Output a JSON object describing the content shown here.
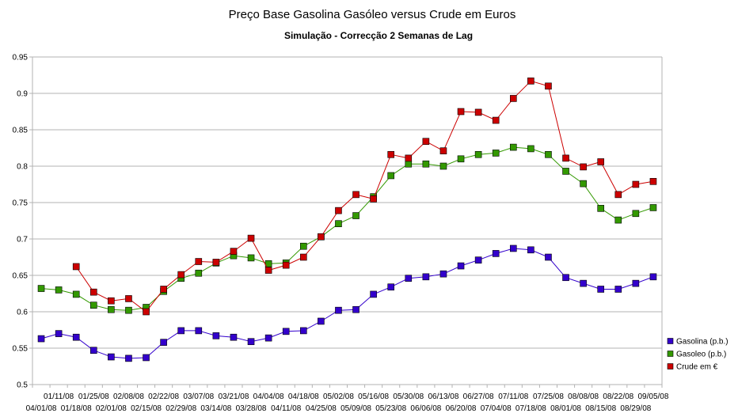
{
  "chart_data": {
    "type": "line",
    "title": "Preço Base Gasolina Gasóleo versus Crude em Euros",
    "subtitle": "Simulação - Correcção 2 Semanas de Lag",
    "xlabel": "",
    "ylabel": "",
    "ylim": [
      0.5,
      0.95
    ],
    "yticks": [
      "0.5",
      "0.55",
      "0.6",
      "0.65",
      "0.7",
      "0.75",
      "0.8",
      "0.85",
      "0.9",
      "0.95"
    ],
    "grid": true,
    "legend_position": "right",
    "categories": [
      "04/01/08",
      "01/11/08",
      "01/18/08",
      "01/25/08",
      "02/01/08",
      "02/08/08",
      "02/15/08",
      "02/22/08",
      "02/29/08",
      "03/07/08",
      "03/14/08",
      "03/21/08",
      "03/28/08",
      "04/04/08",
      "04/11/08",
      "04/18/08",
      "04/25/08",
      "05/02/08",
      "05/09/08",
      "05/16/08",
      "05/23/08",
      "05/30/08",
      "06/06/08",
      "06/13/08",
      "06/20/08",
      "06/27/08",
      "07/04/08",
      "07/11/08",
      "07/18/08",
      "07/25/08",
      "08/01/08",
      "08/08/08",
      "08/15/08",
      "08/22/08",
      "08/29/08",
      "09/05/08"
    ],
    "series": [
      {
        "name": "Gasolina (p.b.)",
        "color": "#3300cc",
        "values": [
          0.563,
          0.57,
          0.565,
          0.547,
          0.538,
          0.536,
          0.537,
          0.558,
          0.574,
          0.574,
          0.567,
          0.565,
          0.559,
          0.564,
          0.573,
          0.574,
          0.587,
          0.602,
          0.603,
          0.624,
          0.634,
          0.646,
          0.648,
          0.652,
          0.663,
          0.671,
          0.68,
          0.687,
          0.685,
          0.675,
          0.647,
          0.639,
          0.631,
          0.631,
          0.639,
          0.648
        ]
      },
      {
        "name": "Gasoleo (p.b.)",
        "color": "#339900",
        "values": [
          0.632,
          0.63,
          0.624,
          0.609,
          0.603,
          0.602,
          0.606,
          0.628,
          0.646,
          0.653,
          0.667,
          0.677,
          0.674,
          0.666,
          0.667,
          0.69,
          0.703,
          0.721,
          0.732,
          0.758,
          0.787,
          0.803,
          0.803,
          0.8,
          0.81,
          0.816,
          0.818,
          0.826,
          0.824,
          0.816,
          0.793,
          0.776,
          0.742,
          0.726,
          0.735,
          0.743
        ]
      },
      {
        "name": "Crude em €",
        "color": "#cc0000",
        "values": [
          null,
          null,
          0.662,
          0.627,
          0.615,
          0.618,
          0.6,
          0.631,
          0.651,
          0.669,
          0.668,
          0.683,
          0.701,
          0.657,
          0.664,
          0.675,
          0.703,
          0.739,
          0.761,
          0.755,
          0.816,
          0.811,
          0.834,
          0.821,
          0.875,
          0.874,
          0.863,
          0.893,
          0.917,
          0.91,
          0.811,
          0.799,
          0.806,
          0.761,
          0.775,
          0.779
        ]
      }
    ]
  }
}
